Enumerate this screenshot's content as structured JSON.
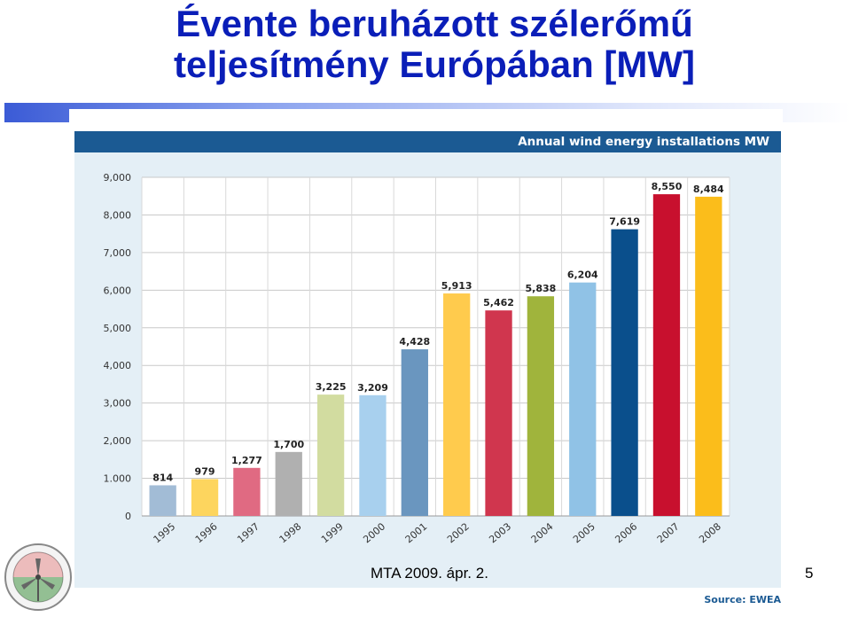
{
  "slide": {
    "title_line1": "Évente beruházott szélerőmű",
    "title_line2": "teljesítmény Európában [MW]",
    "footer": "MTA 2009. ápr. 2.",
    "page_number": "5"
  },
  "chart_data": {
    "type": "bar",
    "title": "Annual wind energy installations MW",
    "source": "Source: EWEA",
    "categories": [
      "1995",
      "1996",
      "1997",
      "1998",
      "1999",
      "2000",
      "2001",
      "2002",
      "2003",
      "2004",
      "2005",
      "2006",
      "2007",
      "2008"
    ],
    "values": [
      814,
      979,
      1277,
      1700,
      3225,
      3209,
      4428,
      5913,
      5462,
      5838,
      6204,
      7619,
      8550,
      8484
    ],
    "value_labels": [
      "814",
      "979",
      "1,277",
      "1,700",
      "3,225",
      "3,209",
      "4,428",
      "5,913",
      "5,462",
      "5,838",
      "6,204",
      "7,619",
      "8,550",
      "8,484"
    ],
    "colors": [
      "#a2bcd6",
      "#fdd55e",
      "#e06a82",
      "#b0b0b0",
      "#d2dca0",
      "#a8d0ee",
      "#6a96bf",
      "#ffcb4d",
      "#d0364e",
      "#a0b43c",
      "#90c2e6",
      "#0a4f8c",
      "#c8102e",
      "#fbbd1b"
    ],
    "yticks": [
      0,
      1000,
      2000,
      3000,
      4000,
      5000,
      6000,
      7000,
      8000,
      9000
    ],
    "ytick_labels": [
      "0",
      "1.000",
      "2,000",
      "3,000",
      "4,000",
      "5,000",
      "6,000",
      "7,000",
      "8,000",
      "9,000"
    ],
    "ylim": [
      0,
      9000
    ],
    "grid": true,
    "theme": {
      "header_bg": "#1b5a93",
      "panel_bg": "#e4eff6"
    }
  }
}
